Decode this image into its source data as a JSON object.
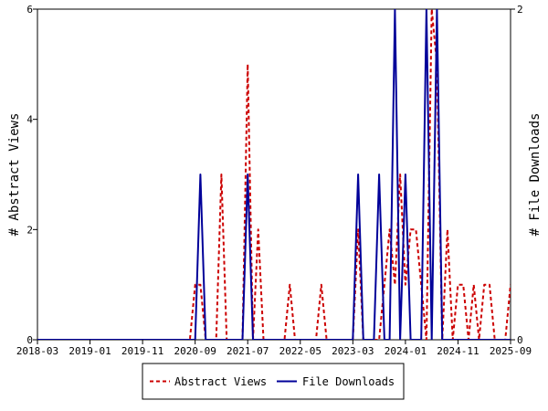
{
  "chart_data": {
    "type": "line",
    "x_axis": {
      "ticks": [
        "2018-03",
        "2019-01",
        "2019-11",
        "2020-09",
        "2021-07",
        "2022-05",
        "2023-03",
        "2024-01",
        "2024-11",
        "2025-09"
      ],
      "range": [
        "2018-03",
        "2025-09"
      ]
    },
    "y_left": {
      "label": "# Abstract Views",
      "range": [
        0,
        6
      ],
      "ticks": [
        0,
        2,
        4,
        6
      ]
    },
    "y_right": {
      "label": "# File Downloads",
      "range": [
        0,
        2
      ],
      "ticks": [
        0,
        2
      ]
    },
    "legend": {
      "position": "bottom"
    },
    "grid": false,
    "series": [
      {
        "name": "Abstract Views",
        "axis": "left",
        "color": "#cc0000",
        "style": "dashed",
        "points": [
          [
            "2018-03",
            0
          ],
          [
            "2020-08",
            0
          ],
          [
            "2020-09",
            1
          ],
          [
            "2020-10",
            1
          ],
          [
            "2020-11",
            0
          ],
          [
            "2021-01",
            0
          ],
          [
            "2021-02",
            3
          ],
          [
            "2021-03",
            0
          ],
          [
            "2021-06",
            0
          ],
          [
            "2021-07",
            5
          ],
          [
            "2021-08",
            0
          ],
          [
            "2021-09",
            2
          ],
          [
            "2021-10",
            0
          ],
          [
            "2022-02",
            0
          ],
          [
            "2022-03",
            1
          ],
          [
            "2022-04",
            0
          ],
          [
            "2022-08",
            0
          ],
          [
            "2022-09",
            1
          ],
          [
            "2022-10",
            0
          ],
          [
            "2023-03",
            0
          ],
          [
            "2023-04",
            2
          ],
          [
            "2023-05",
            0
          ],
          [
            "2023-08",
            0
          ],
          [
            "2023-09",
            1
          ],
          [
            "2023-10",
            2
          ],
          [
            "2023-11",
            1
          ],
          [
            "2023-12",
            3
          ],
          [
            "2024-01",
            1
          ],
          [
            "2024-02",
            2
          ],
          [
            "2024-03",
            2
          ],
          [
            "2024-04",
            1
          ],
          [
            "2024-05",
            0
          ],
          [
            "2024-06",
            6
          ],
          [
            "2024-07",
            5
          ],
          [
            "2024-08",
            0
          ],
          [
            "2024-09",
            2
          ],
          [
            "2024-10",
            0
          ],
          [
            "2024-11",
            1
          ],
          [
            "2024-12",
            1
          ],
          [
            "2025-01",
            0
          ],
          [
            "2025-02",
            1
          ],
          [
            "2025-03",
            0
          ],
          [
            "2025-04",
            1
          ],
          [
            "2025-05",
            1
          ],
          [
            "2025-06",
            0
          ],
          [
            "2025-08",
            0
          ],
          [
            "2025-09",
            1
          ]
        ]
      },
      {
        "name": "File Downloads",
        "axis": "right",
        "color": "#000099",
        "style": "solid",
        "points": [
          [
            "2018-03",
            0
          ],
          [
            "2020-09",
            0
          ],
          [
            "2020-10",
            1
          ],
          [
            "2020-11",
            0
          ],
          [
            "2021-06",
            0
          ],
          [
            "2021-07",
            1
          ],
          [
            "2021-08",
            0
          ],
          [
            "2023-03",
            0
          ],
          [
            "2023-04",
            1
          ],
          [
            "2023-05",
            0
          ],
          [
            "2023-07",
            0
          ],
          [
            "2023-08",
            1
          ],
          [
            "2023-09",
            0
          ],
          [
            "2023-10",
            0
          ],
          [
            "2023-11",
            2
          ],
          [
            "2023-12",
            0
          ],
          [
            "2024-01",
            1
          ],
          [
            "2024-02",
            0
          ],
          [
            "2024-04",
            0
          ],
          [
            "2024-05",
            2
          ],
          [
            "2024-06",
            0
          ],
          [
            "2024-07",
            2
          ],
          [
            "2024-08",
            0
          ],
          [
            "2025-09",
            0
          ]
        ]
      }
    ]
  }
}
